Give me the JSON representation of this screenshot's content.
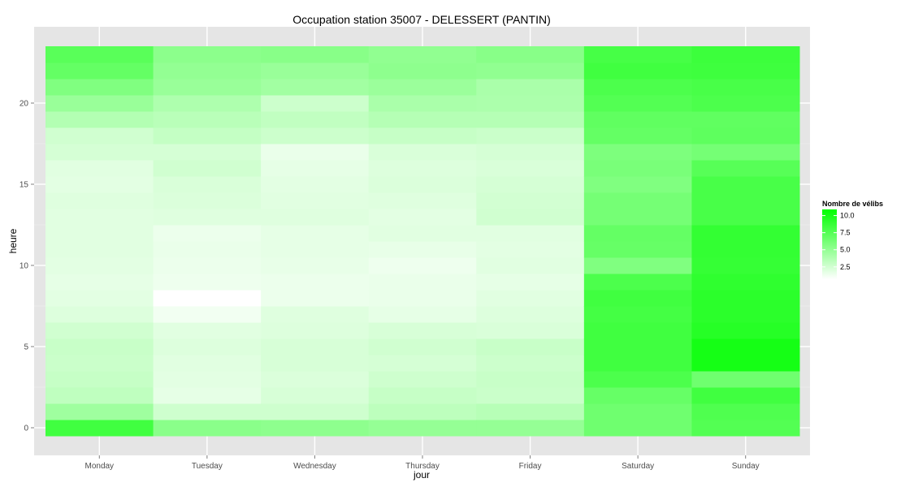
{
  "chart_data": {
    "type": "heatmap",
    "title": "Occupation station 35007 - DELESSERT (PANTIN)",
    "xlabel": "jour",
    "ylabel": "heure",
    "x_categories": [
      "Monday",
      "Tuesday",
      "Wednesday",
      "Thursday",
      "Friday",
      "Saturday",
      "Sunday"
    ],
    "y_values": [
      0,
      1,
      2,
      3,
      4,
      5,
      6,
      7,
      8,
      9,
      10,
      11,
      12,
      13,
      14,
      15,
      16,
      17,
      18,
      19,
      20,
      21,
      22,
      23
    ],
    "ylim": [
      -0.5,
      23.5
    ],
    "y_ticks": [
      0,
      5,
      10,
      15,
      20
    ],
    "y_tick_labels": [
      "0",
      "5",
      "10",
      "15",
      "20"
    ],
    "color_scale": {
      "low": "#ffffff",
      "high": "#00ff00",
      "min": 0,
      "max": 12
    },
    "legend": {
      "title": "Nombre de vélibs",
      "breaks": [
        2.5,
        5.0,
        7.5,
        10.0
      ],
      "labels": [
        "2.5",
        "5.0",
        "7.5",
        "10.0"
      ],
      "position": "right"
    },
    "grid": true,
    "series": [
      {
        "name": "Monday",
        "values": [
          9.0,
          4.5,
          3.0,
          2.7,
          2.5,
          2.6,
          2.2,
          1.6,
          1.3,
          1.2,
          1.3,
          1.4,
          1.4,
          1.4,
          1.5,
          1.3,
          1.4,
          2.0,
          2.2,
          3.6,
          4.8,
          6.0,
          7.3,
          7.8
        ]
      },
      {
        "name": "Tuesday",
        "values": [
          5.5,
          2.3,
          1.2,
          1.3,
          1.4,
          1.6,
          1.4,
          0.6,
          0.0,
          0.8,
          0.9,
          1.0,
          0.9,
          1.5,
          1.7,
          1.8,
          2.2,
          2.0,
          2.8,
          3.3,
          3.8,
          4.8,
          5.1,
          5.4
        ]
      },
      {
        "name": "Wednesday",
        "values": [
          5.3,
          2.3,
          1.9,
          1.7,
          1.9,
          1.9,
          1.6,
          1.5,
          0.9,
          0.9,
          1.1,
          1.2,
          1.2,
          1.5,
          1.4,
          1.3,
          1.2,
          1.0,
          2.4,
          2.9,
          2.4,
          4.4,
          4.8,
          5.6
        ]
      },
      {
        "name": "Thursday",
        "values": [
          5.0,
          3.1,
          2.7,
          2.3,
          2.0,
          2.2,
          1.9,
          1.2,
          1.0,
          1.0,
          0.8,
          1.1,
          1.4,
          1.3,
          1.5,
          1.7,
          1.6,
          1.8,
          2.7,
          3.5,
          4.0,
          4.7,
          5.3,
          5.2
        ]
      },
      {
        "name": "Friday",
        "values": [
          5.0,
          3.4,
          2.5,
          2.6,
          2.4,
          2.6,
          1.8,
          1.6,
          1.4,
          1.2,
          1.4,
          1.3,
          1.4,
          2.2,
          2.1,
          2.0,
          1.8,
          2.0,
          2.5,
          3.5,
          3.9,
          4.0,
          5.2,
          5.6
        ]
      },
      {
        "name": "Saturday",
        "values": [
          6.8,
          6.8,
          7.2,
          8.4,
          9.0,
          9.0,
          9.0,
          8.8,
          9.0,
          8.4,
          6.0,
          7.2,
          7.3,
          6.5,
          6.5,
          6.0,
          6.3,
          6.1,
          7.3,
          7.5,
          8.1,
          8.4,
          9.0,
          8.7
        ]
      },
      {
        "name": "Sunday",
        "values": [
          8.1,
          8.3,
          9.0,
          6.8,
          11.0,
          11.0,
          10.2,
          10.0,
          10.0,
          9.8,
          9.5,
          9.6,
          9.6,
          8.6,
          8.6,
          8.6,
          7.9,
          6.5,
          7.6,
          7.5,
          8.4,
          8.6,
          9.1,
          9.2
        ]
      }
    ]
  }
}
